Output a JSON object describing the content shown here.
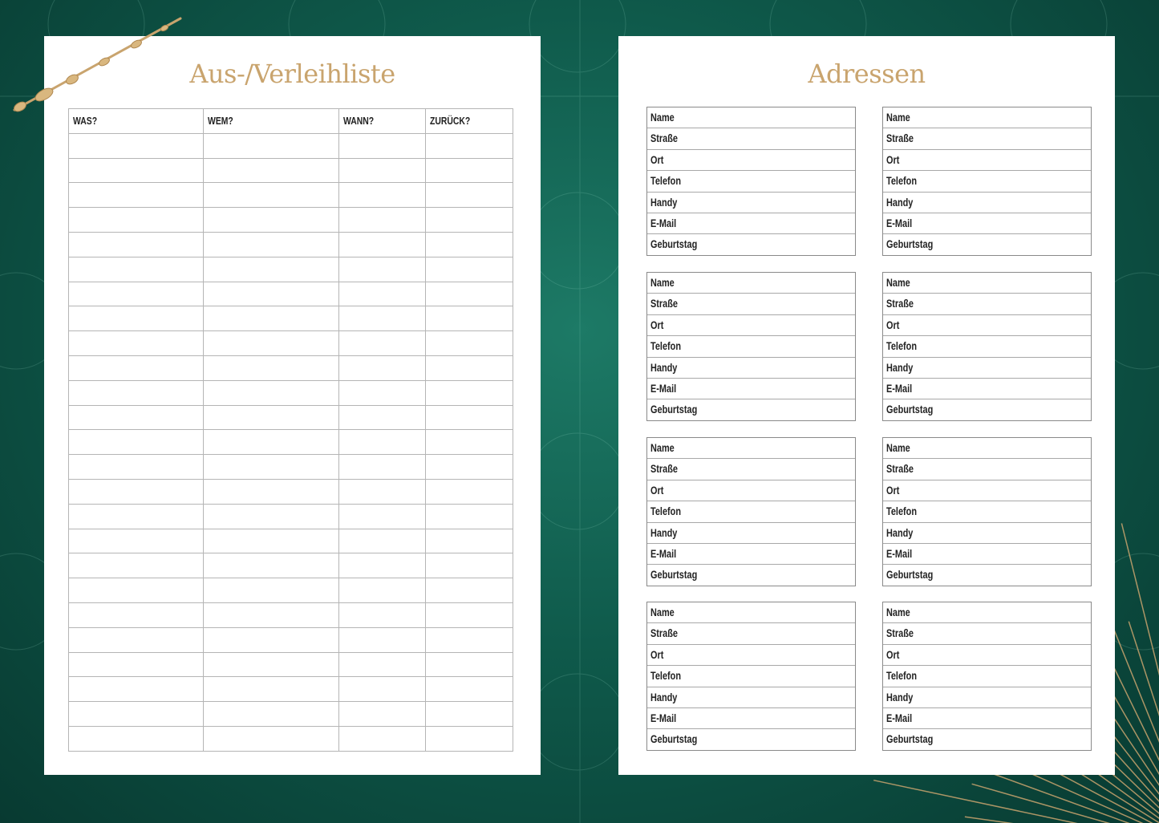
{
  "left_page": {
    "title": "Aus-/Verleihliste",
    "table": {
      "headers": [
        "WAS?",
        "WEM?",
        "WANN?",
        "ZURÜCK?"
      ],
      "row_count": 25
    }
  },
  "right_page": {
    "title": "Adressen",
    "address_fields": [
      "Name",
      "Straße",
      "Ort",
      "Telefon",
      "Handy",
      "E-Mail",
      "Geburtstag"
    ],
    "address_card_count": 8
  },
  "colors": {
    "background": "#0f5a4b",
    "gold": "#c9a46e",
    "page": "#ffffff"
  }
}
